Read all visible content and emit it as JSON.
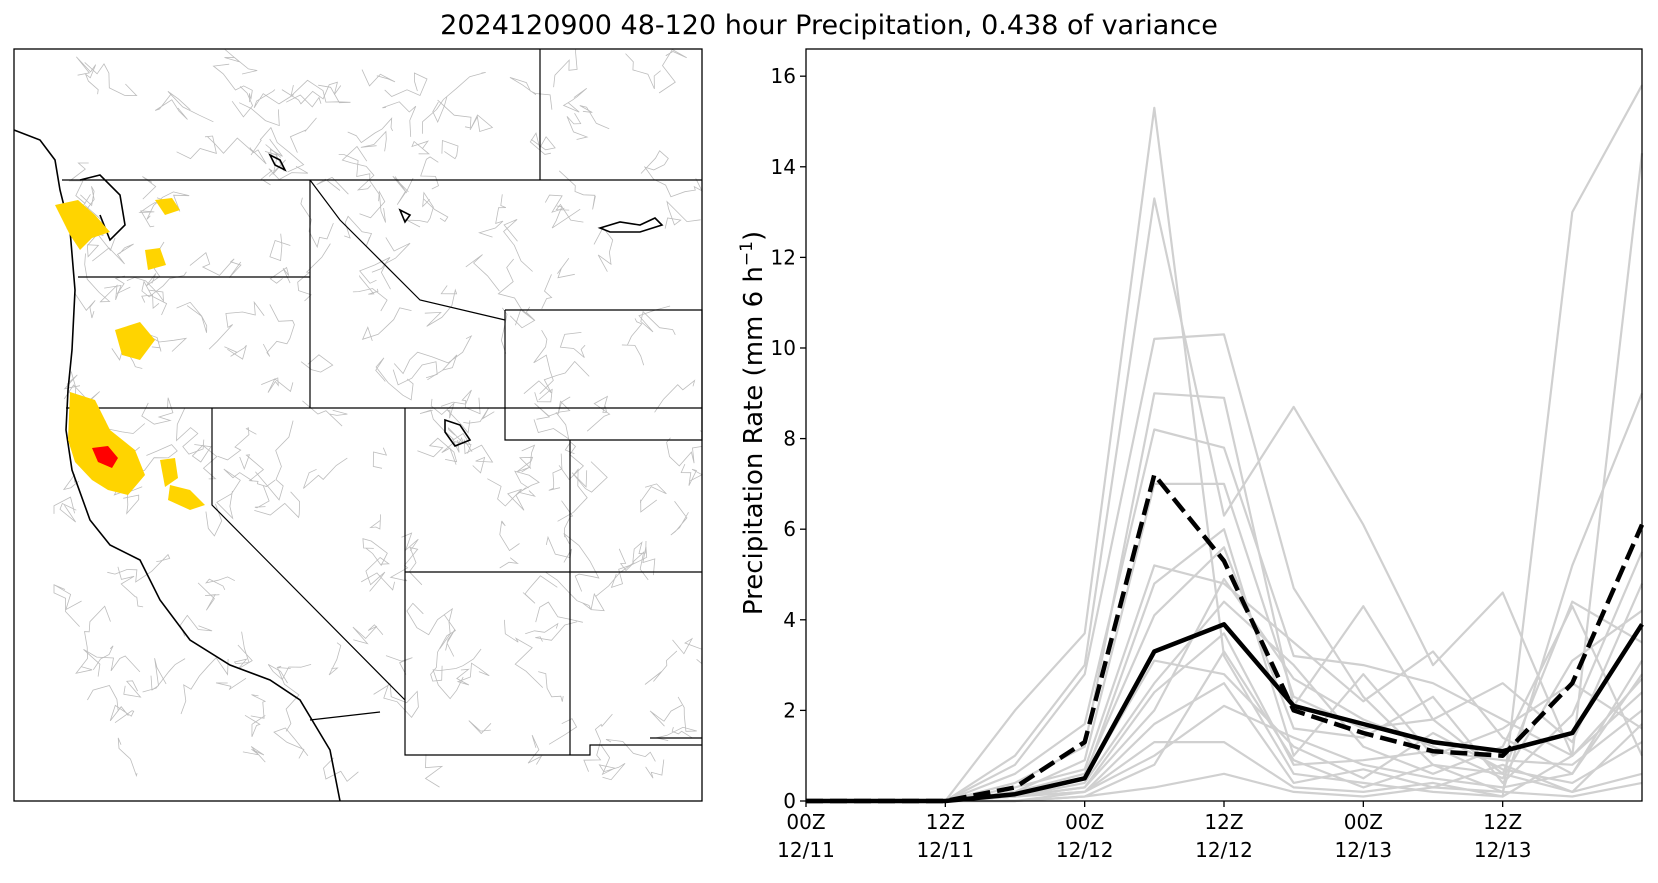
{
  "title": "2024120900 48-120 hour Precipitation, 0.438 of variance",
  "map": {
    "basin_outline_color": "#bdbdbd",
    "state_border_color": "#000000",
    "highlight_color": "#ffd400",
    "max_basin_color": "#ff0000"
  },
  "chart_data": {
    "type": "line",
    "title": "2024120900 48-120 hour Precipitation, 0.438 of variance",
    "ylabel": "Precipitation Rate (mm 6 h",
    "ylabel_sup": "−1",
    "ylabel_close": ")",
    "ylim": [
      0,
      16.6
    ],
    "yticks": [
      0,
      2,
      4,
      6,
      8,
      10,
      12,
      14,
      16
    ],
    "x_hours": [
      0,
      6,
      12,
      18,
      24,
      30,
      36,
      42,
      48,
      54,
      60,
      66,
      72
    ],
    "xlim": [
      0,
      72
    ],
    "xticks": [
      {
        "hour": 0,
        "line1": "00Z",
        "line2": "12/11"
      },
      {
        "hour": 12,
        "line1": "12Z",
        "line2": "12/11"
      },
      {
        "hour": 24,
        "line1": "00Z",
        "line2": "12/12"
      },
      {
        "hour": 36,
        "line1": "12Z",
        "line2": "12/12"
      },
      {
        "hour": 48,
        "line1": "00Z",
        "line2": "12/13"
      },
      {
        "hour": 60,
        "line1": "12Z",
        "line2": "12/13"
      }
    ],
    "grid": false,
    "series": [
      {
        "style": "solid",
        "color": "#000000",
        "values": [
          0,
          0,
          0,
          0.15,
          0.5,
          3.3,
          3.9,
          2.1,
          1.7,
          1.3,
          1.1,
          1.5,
          3.9
        ]
      },
      {
        "style": "dashed",
        "color": "#000000",
        "values": [
          0,
          0,
          0,
          0.3,
          1.3,
          7.2,
          5.3,
          2.0,
          1.5,
          1.1,
          1.0,
          2.6,
          6.1
        ]
      }
    ],
    "members_color": "#d0d0d0",
    "members": [
      [
        0,
        0,
        0,
        2.0,
        3.7,
        15.3,
        3.2,
        0.6,
        0.4,
        0.2,
        0.1,
        13.0,
        15.8
      ],
      [
        0,
        0,
        0,
        1.0,
        3.0,
        13.3,
        6.3,
        8.7,
        6.1,
        3.0,
        4.6,
        1.0,
        14.3
      ],
      [
        0,
        0,
        0,
        0.8,
        2.8,
        10.2,
        10.3,
        4.7,
        2.3,
        0.8,
        0.2,
        5.2,
        9.0
      ],
      [
        0,
        0,
        0,
        0.4,
        1.2,
        9.0,
        8.9,
        2.1,
        4.3,
        1.8,
        0.6,
        4.4,
        3.5
      ],
      [
        0,
        0,
        0,
        0.6,
        1.7,
        8.2,
        7.8,
        3.2,
        3.0,
        2.6,
        1.8,
        1.0,
        2.4
      ],
      [
        0,
        0,
        0,
        0.2,
        0.9,
        7.0,
        7.0,
        2.3,
        1.6,
        1.8,
        2.6,
        1.3,
        4.8
      ],
      [
        0,
        0,
        0,
        0.3,
        0.7,
        5.2,
        4.8,
        3.5,
        2.2,
        3.3,
        1.4,
        0.6,
        2.8
      ],
      [
        0,
        0,
        0,
        0.1,
        0.5,
        4.8,
        6.0,
        1.0,
        2.8,
        1.0,
        1.6,
        2.6,
        1.6
      ],
      [
        0,
        0,
        0,
        0.2,
        0.6,
        4.1,
        5.6,
        1.6,
        1.4,
        2.3,
        0.4,
        1.9,
        5.5
      ],
      [
        0,
        0,
        0,
        0.1,
        0.3,
        2.4,
        3.7,
        0.8,
        0.9,
        1.1,
        0.9,
        0.8,
        2.0
      ],
      [
        0,
        0,
        0,
        0.1,
        0.4,
        2.6,
        4.4,
        3.0,
        1.2,
        0.6,
        1.2,
        4.3,
        1.0
      ],
      [
        0,
        0,
        0,
        0.2,
        0.5,
        3.1,
        2.8,
        1.2,
        0.5,
        1.5,
        0.7,
        0.4,
        1.3
      ],
      [
        0,
        0,
        0,
        0.1,
        0.2,
        1.7,
        2.6,
        0.4,
        0.7,
        0.3,
        0.8,
        0.2,
        0.6
      ],
      [
        0,
        0,
        0,
        0.0,
        0.2,
        1.3,
        1.3,
        0.3,
        0.2,
        0.4,
        0.1,
        1.0,
        2.7
      ],
      [
        0,
        0,
        0,
        0.1,
        0.3,
        2.0,
        4.9,
        2.7,
        1.8,
        1.2,
        0.5,
        3.1,
        4.2
      ],
      [
        0,
        0,
        0,
        0.0,
        0.1,
        0.3,
        0.6,
        0.2,
        0.1,
        0.3,
        0.2,
        0.1,
        0.4
      ],
      [
        0,
        0,
        0,
        0.1,
        0.2,
        1.0,
        2.1,
        1.4,
        0.8,
        0.5,
        0.3,
        0.6,
        3.1
      ],
      [
        0,
        0,
        0,
        0.0,
        0.1,
        0.8,
        3.3,
        0.9,
        0.3,
        0.8,
        0.6,
        0.2,
        1.7
      ]
    ]
  }
}
